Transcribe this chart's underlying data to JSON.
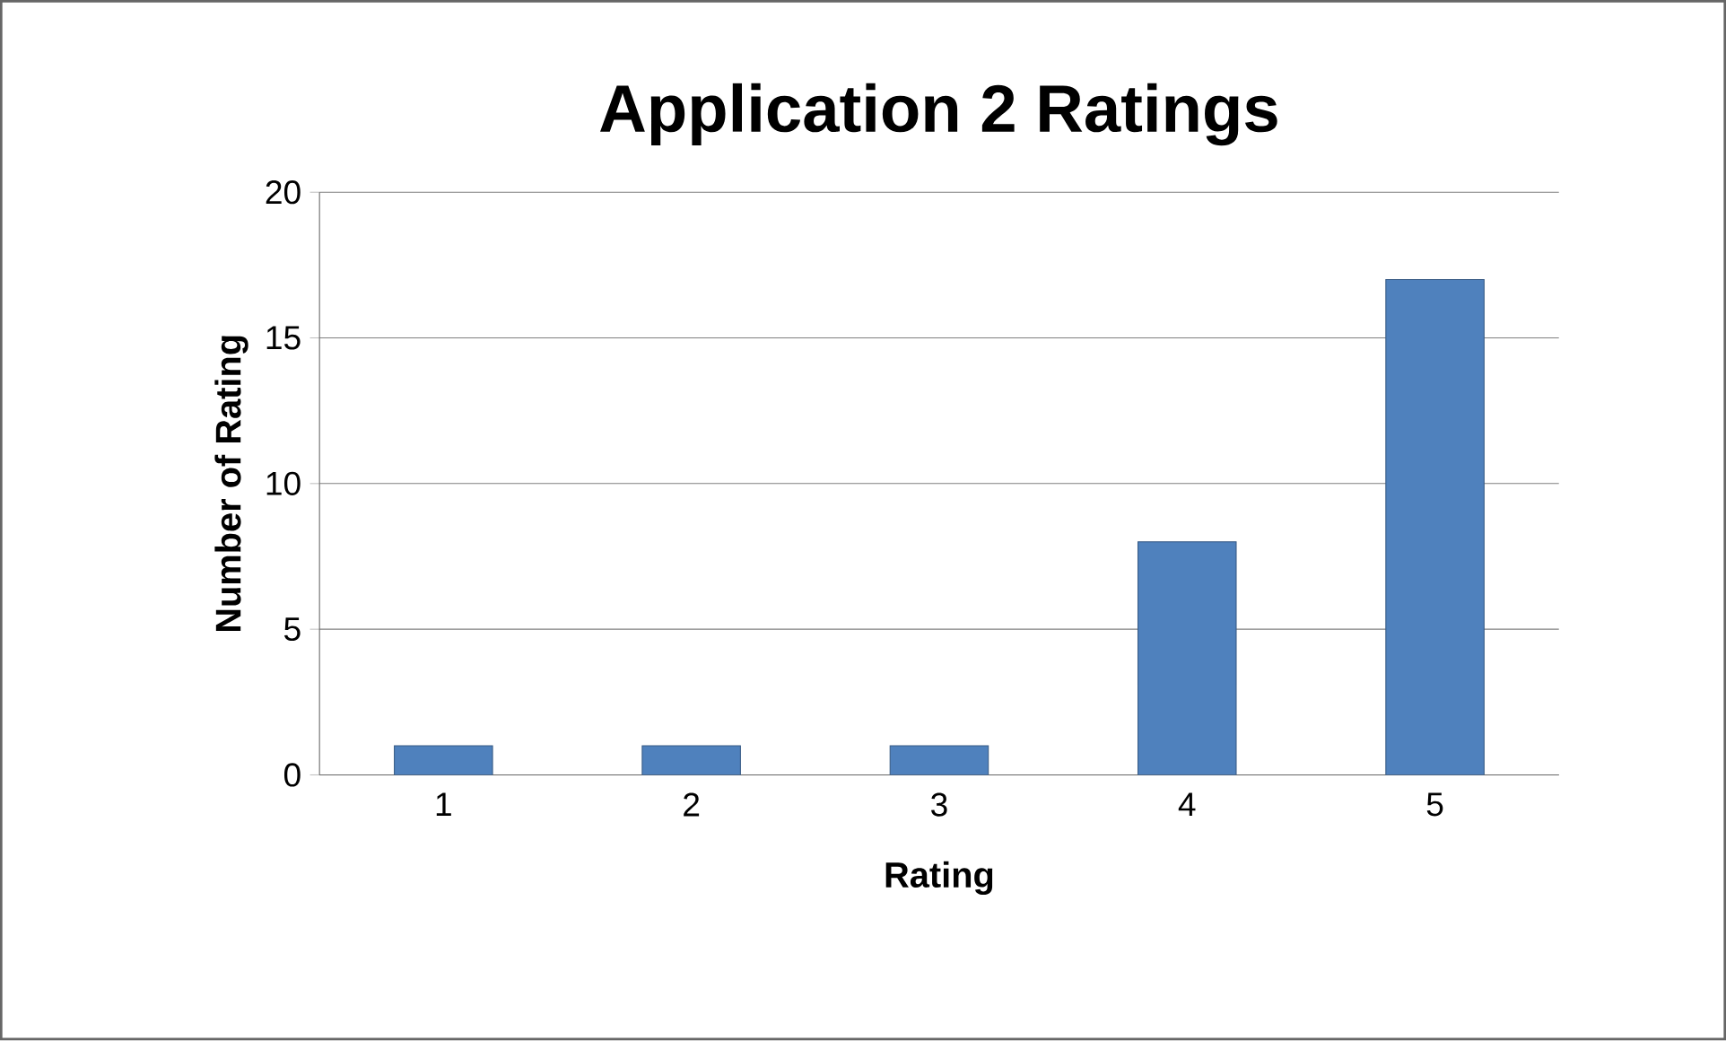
{
  "chart_data": {
    "type": "bar",
    "title": "Application 2 Ratings",
    "xlabel": "Rating",
    "ylabel": "Number of Rating",
    "categories": [
      "1",
      "2",
      "3",
      "4",
      "5"
    ],
    "values": [
      1,
      1,
      1,
      8,
      17
    ],
    "color": "#4f81bd",
    "ylim": [
      0,
      20
    ],
    "yticks": [
      0,
      5,
      10,
      15,
      20
    ],
    "grid": "y"
  }
}
